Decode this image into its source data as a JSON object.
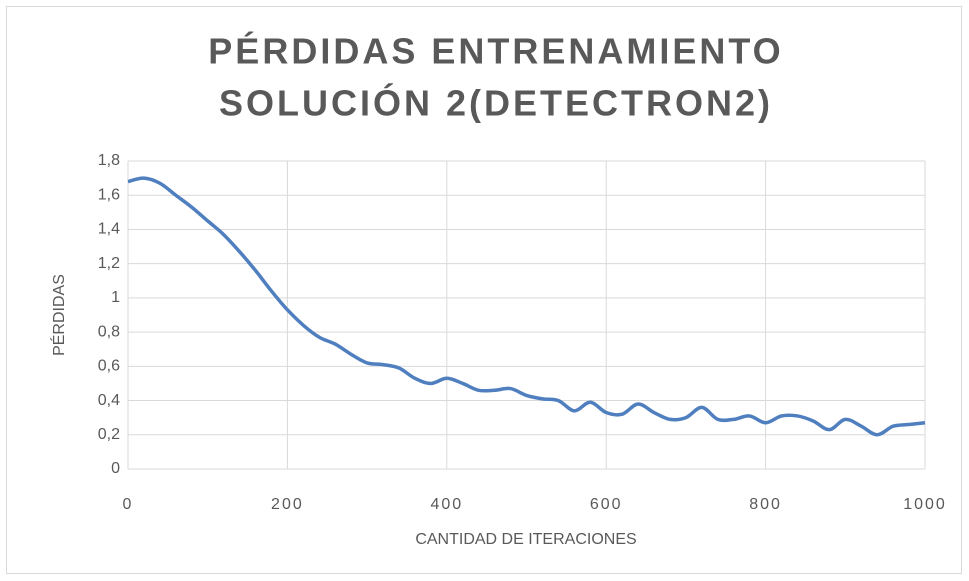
{
  "chart_data": {
    "type": "line",
    "title": [
      "PÉRDIDAS ENTRENAMIENTO",
      "SOLUCIÓN 2(DETECTRON2)"
    ],
    "xlabel": "CANTIDAD DE ITERACIONES",
    "ylabel": "PÉRDIDAS",
    "x": [
      0,
      20,
      40,
      60,
      80,
      100,
      120,
      140,
      160,
      180,
      200,
      220,
      240,
      260,
      280,
      300,
      320,
      340,
      360,
      380,
      400,
      420,
      440,
      460,
      480,
      500,
      520,
      540,
      560,
      580,
      600,
      620,
      640,
      660,
      680,
      700,
      720,
      740,
      760,
      780,
      800,
      820,
      840,
      860,
      880,
      900,
      920,
      940,
      960,
      980,
      1000
    ],
    "series": [
      {
        "color": "#4f7fbf",
        "values": [
          1.68,
          1.7,
          1.67,
          1.6,
          1.53,
          1.45,
          1.37,
          1.27,
          1.16,
          1.04,
          0.93,
          0.84,
          0.77,
          0.73,
          0.67,
          0.62,
          0.61,
          0.59,
          0.53,
          0.5,
          0.53,
          0.5,
          0.46,
          0.46,
          0.47,
          0.43,
          0.41,
          0.4,
          0.34,
          0.39,
          0.33,
          0.32,
          0.38,
          0.33,
          0.29,
          0.3,
          0.36,
          0.29,
          0.29,
          0.31,
          0.27,
          0.31,
          0.31,
          0.28,
          0.23,
          0.29,
          0.25,
          0.2,
          0.25,
          0.26,
          0.27
        ]
      }
    ],
    "xlim": [
      0,
      1000
    ],
    "xticks": [
      0,
      200,
      400,
      600,
      800,
      1000
    ],
    "ylim": [
      0,
      1.8
    ],
    "yticks": [
      0,
      {
        "value": 0.2,
        "label": "0,2"
      },
      {
        "value": 0.4,
        "label": "0,4"
      },
      {
        "value": 0.6,
        "label": "0,6"
      },
      {
        "value": 0.8,
        "label": "0,8"
      },
      1,
      {
        "value": 1.2,
        "label": "1,2"
      },
      {
        "value": 1.4,
        "label": "1,4"
      },
      {
        "value": 1.6,
        "label": "1,6"
      },
      {
        "value": 1.8,
        "label": "1,8"
      }
    ],
    "grid": true
  }
}
